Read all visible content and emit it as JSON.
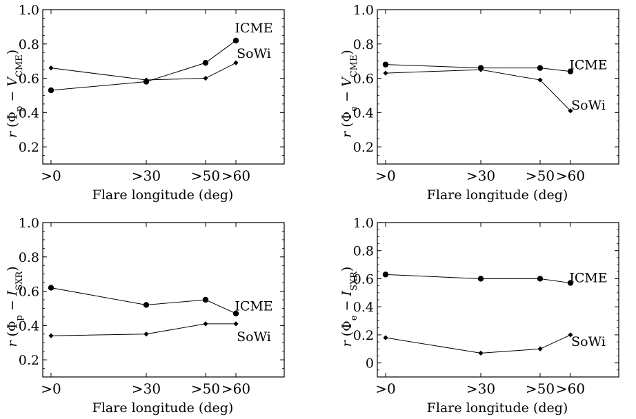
{
  "chart_data": [
    {
      "type": "line",
      "xlabel": "Flare longitude  (deg)",
      "ylabel": {
        "r": "r",
        "phi_sub": "p",
        "var": "V",
        "var_sub": "CME"
      },
      "categories": [
        ">0",
        ">30",
        ">50",
        ">60"
      ],
      "x": [
        0,
        30,
        50,
        60
      ],
      "ylim": [
        0.1,
        1.0
      ],
      "yticks": [
        "0.2",
        "0.4",
        "0.6",
        "0.8",
        "1.0"
      ],
      "series": [
        {
          "name": "ICME",
          "marker": "circle",
          "values": [
            0.53,
            0.58,
            0.69,
            0.82
          ]
        },
        {
          "name": "SoWi",
          "marker": "diamond",
          "values": [
            0.66,
            0.59,
            0.6,
            0.69
          ]
        }
      ],
      "grid": false
    },
    {
      "type": "line",
      "xlabel": "Flare longitude  (deg)",
      "ylabel": {
        "r": "r",
        "phi_sub": "e",
        "var": "V",
        "var_sub": "CME"
      },
      "categories": [
        ">0",
        ">30",
        ">50",
        ">60"
      ],
      "x": [
        0,
        30,
        50,
        60
      ],
      "ylim": [
        0.1,
        1.0
      ],
      "yticks": [
        "0.2",
        "0.4",
        "0.6",
        "0.8",
        "1.0"
      ],
      "series": [
        {
          "name": "ICME",
          "marker": "circle",
          "values": [
            0.68,
            0.66,
            0.66,
            0.64
          ]
        },
        {
          "name": "SoWi",
          "marker": "diamond",
          "values": [
            0.63,
            0.65,
            0.59,
            0.41
          ]
        }
      ],
      "grid": false
    },
    {
      "type": "line",
      "xlabel": "Flare longitude  (deg)",
      "ylabel": {
        "r": "r",
        "phi_sub": "p",
        "var": "I",
        "var_sub": "SXR"
      },
      "categories": [
        ">0",
        ">30",
        ">50",
        ">60"
      ],
      "x": [
        0,
        30,
        50,
        60
      ],
      "ylim": [
        0.1,
        1.0
      ],
      "yticks": [
        "0.2",
        "0.4",
        "0.6",
        "0.8",
        "1.0"
      ],
      "series": [
        {
          "name": "ICME",
          "marker": "circle",
          "values": [
            0.62,
            0.52,
            0.55,
            0.47
          ]
        },
        {
          "name": "SoWi",
          "marker": "diamond",
          "values": [
            0.34,
            0.35,
            0.41,
            0.41
          ]
        }
      ],
      "grid": false
    },
    {
      "type": "line",
      "xlabel": "Flare longitude  (deg)",
      "ylabel": {
        "r": "r",
        "phi_sub": "e",
        "var": "I",
        "var_sub": "SXR"
      },
      "categories": [
        ">0",
        ">30",
        ">50",
        ">60"
      ],
      "x": [
        0,
        30,
        50,
        60
      ],
      "ylim": [
        -0.1,
        1.0
      ],
      "yticks": [
        "0",
        "0.2",
        "0.4",
        "0.6",
        "0.8",
        "1.0"
      ],
      "series": [
        {
          "name": "ICME",
          "marker": "circle",
          "values": [
            0.63,
            0.6,
            0.6,
            0.57
          ]
        },
        {
          "name": "SoWi",
          "marker": "diamond",
          "values": [
            0.18,
            0.07,
            0.1,
            0.2
          ]
        }
      ],
      "grid": false
    }
  ]
}
